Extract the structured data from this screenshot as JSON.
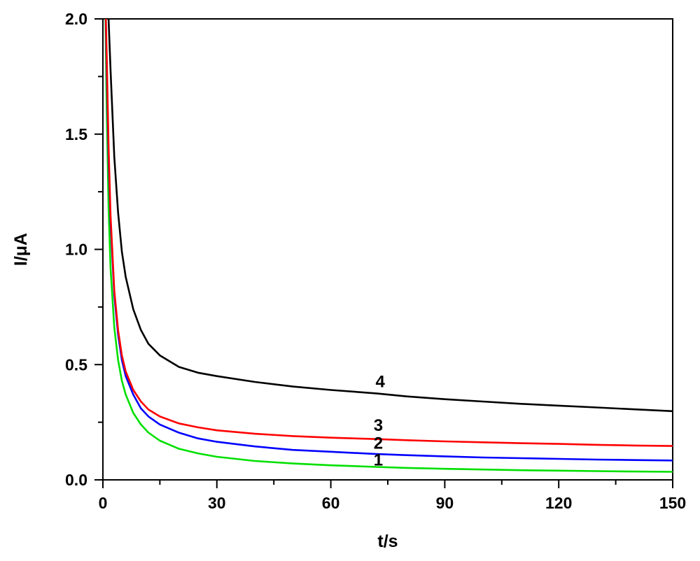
{
  "chart_data": {
    "type": "line",
    "title": "",
    "xlabel": "t/s",
    "ylabel": "I/μA",
    "xlim": [
      0,
      150
    ],
    "ylim": [
      0,
      2.0
    ],
    "xticks": [
      0,
      30,
      60,
      90,
      120,
      150
    ],
    "xtick_labels": [
      "0",
      "30",
      "60",
      "90",
      "120",
      "150"
    ],
    "yticks": [
      0,
      0.5,
      1.0,
      1.5,
      2.0
    ],
    "ytick_labels": [
      "0.0",
      "0.5",
      "1.0",
      "1.5",
      "2.0"
    ],
    "grid": false,
    "legend": "none",
    "series": [
      {
        "label": "1",
        "color": "#00e000",
        "x": [
          0.5,
          1,
          1.5,
          2,
          3,
          4,
          5,
          6,
          8,
          10,
          12,
          15,
          20,
          25,
          30,
          40,
          50,
          60,
          72,
          80,
          90,
          100,
          110,
          120,
          130,
          140,
          150
        ],
        "y": [
          2.2,
          1.62,
          1.18,
          0.92,
          0.66,
          0.52,
          0.43,
          0.37,
          0.29,
          0.24,
          0.205,
          0.17,
          0.135,
          0.115,
          0.1,
          0.082,
          0.071,
          0.063,
          0.056,
          0.052,
          0.048,
          0.045,
          0.042,
          0.04,
          0.038,
          0.036,
          0.035
        ]
      },
      {
        "label": "2",
        "color": "#0000ff",
        "x": [
          0.5,
          1,
          1.5,
          2,
          3,
          4,
          5,
          6,
          8,
          10,
          12,
          15,
          20,
          25,
          30,
          40,
          50,
          60,
          72,
          80,
          90,
          100,
          110,
          120,
          130,
          140,
          150
        ],
        "y": [
          2.2,
          1.8,
          1.4,
          1.12,
          0.8,
          0.63,
          0.52,
          0.45,
          0.37,
          0.31,
          0.275,
          0.24,
          0.205,
          0.18,
          0.165,
          0.145,
          0.13,
          0.122,
          0.112,
          0.107,
          0.102,
          0.097,
          0.094,
          0.091,
          0.088,
          0.086,
          0.084
        ]
      },
      {
        "label": "3",
        "color": "#ff0000",
        "x": [
          0.5,
          1,
          1.5,
          2,
          3,
          4,
          5,
          6,
          8,
          10,
          12,
          15,
          20,
          25,
          30,
          40,
          50,
          60,
          72,
          80,
          90,
          100,
          110,
          120,
          130,
          140,
          150
        ],
        "y": [
          2.2,
          1.85,
          1.45,
          1.15,
          0.82,
          0.65,
          0.54,
          0.47,
          0.39,
          0.34,
          0.305,
          0.275,
          0.245,
          0.228,
          0.215,
          0.2,
          0.19,
          0.183,
          0.177,
          0.172,
          0.167,
          0.163,
          0.159,
          0.156,
          0.152,
          0.149,
          0.147
        ]
      },
      {
        "label": "4",
        "color": "#000000",
        "x": [
          0.5,
          1,
          1.5,
          2,
          3,
          4,
          5,
          6,
          8,
          10,
          12,
          15,
          20,
          25,
          30,
          40,
          50,
          60,
          72,
          80,
          90,
          100,
          110,
          120,
          130,
          140,
          150
        ],
        "y": [
          2.3,
          2.2,
          2.0,
          1.78,
          1.4,
          1.16,
          0.99,
          0.88,
          0.74,
          0.65,
          0.59,
          0.54,
          0.49,
          0.465,
          0.45,
          0.425,
          0.405,
          0.39,
          0.375,
          0.362,
          0.35,
          0.34,
          0.33,
          0.322,
          0.314,
          0.306,
          0.298
        ]
      }
    ],
    "annotations": [
      {
        "text": "4",
        "x": 73,
        "y": 0.43
      },
      {
        "text": "3",
        "x": 72.5,
        "y": 0.24
      },
      {
        "text": "2",
        "x": 72.5,
        "y": 0.162
      },
      {
        "text": "1",
        "x": 72.5,
        "y": 0.09
      }
    ]
  }
}
